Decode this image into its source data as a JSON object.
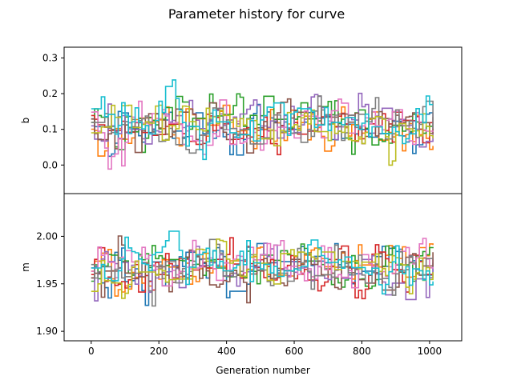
{
  "chart_data": {
    "type": "line",
    "title": "Parameter history for curve",
    "xlabel": "Generation number",
    "xlim": [
      -80,
      1095
    ],
    "xticks": [
      0,
      200,
      400,
      600,
      800,
      1000
    ],
    "x_range": [
      0,
      1010
    ],
    "series_count": 10,
    "step_interval": 10,
    "series_colors": [
      "#1f77b4",
      "#ff7f0e",
      "#2ca02c",
      "#d62728",
      "#9467bd",
      "#8c564b",
      "#e377c2",
      "#7f7f7f",
      "#bcbd22",
      "#17becf"
    ],
    "grid": false,
    "legend": "none",
    "panels": [
      {
        "ylabel": "b",
        "ylim": [
          -0.08,
          0.33
        ],
        "yticks": [
          0.0,
          0.1,
          0.2,
          0.3
        ],
        "ytick_labels": [
          "0.0",
          "0.1",
          "0.2",
          "0.3"
        ],
        "value_range": [
          -0.07,
          0.31
        ],
        "center": 0.11,
        "spread": 0.06
      },
      {
        "ylabel": "m",
        "ylim": [
          1.89,
          2.045
        ],
        "yticks": [
          1.9,
          1.95,
          2.0
        ],
        "ytick_labels": [
          "1.90",
          "1.95",
          "2.00"
        ],
        "value_range": [
          1.897,
          2.038
        ],
        "center": 1.967,
        "spread": 0.022
      }
    ]
  }
}
